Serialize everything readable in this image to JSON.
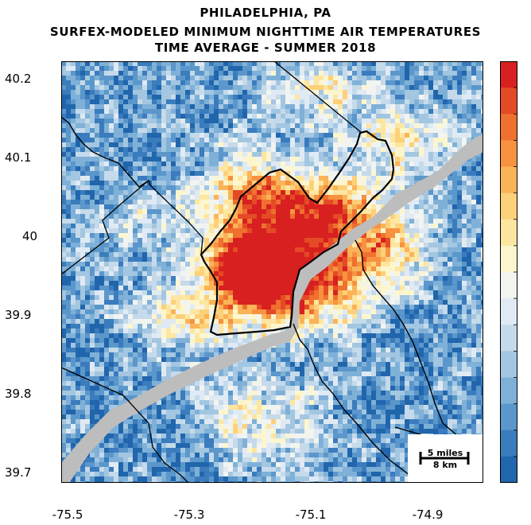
{
  "header": {
    "line1": "PHILADELPHIA, PA",
    "line2": "SURFEX-MODELED MINIMUM NIGHTTIME AIR TEMPERATURES",
    "line3": "TIME AVERAGE - SUMMER 2018"
  },
  "axes": {
    "y_ticks": [
      "40.2",
      "40.1",
      "40",
      "39.9",
      "39.8",
      "39.7"
    ],
    "x_ticks": [
      "-75.5",
      "-75.3",
      "-75.1",
      "-74.9"
    ]
  },
  "scale_bar": {
    "miles_label": "5 miles",
    "km_label": "8 km"
  },
  "colorbar": {
    "colors": [
      "#2166ac",
      "#3a7cbd",
      "#5b97cb",
      "#7fb1d8",
      "#a3c6e1",
      "#c5daea",
      "#e0eaf4",
      "#f2f4ef",
      "#fdf6cd",
      "#fde6a0",
      "#fdd07a",
      "#fbb358",
      "#f79240",
      "#ef702f",
      "#e54a26",
      "#d7201f"
    ]
  },
  "map_palette": {
    "water": "#bdbdbd",
    "boundary": "#000000"
  }
}
